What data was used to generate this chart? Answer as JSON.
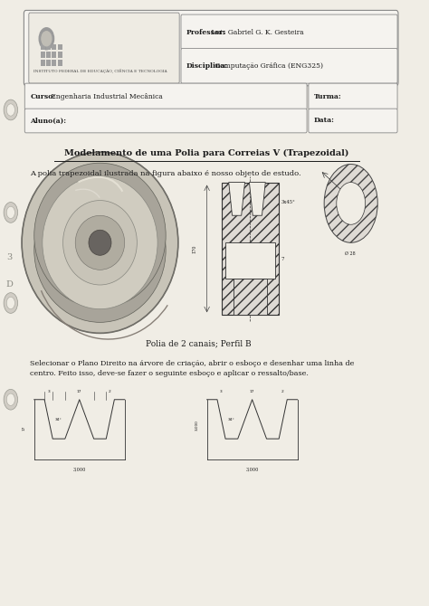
{
  "bg_color": "#e8e4dc",
  "page_bg": "#f0ede5",
  "header": {
    "institute_text": "INSTITUTO FEDERAL DE EDUCAÇÃO, CIÊNCIA E TECNOLOGIA",
    "professor_label": "Professor:",
    "professor_name": " Luis Gabriel G. K. Gesteira",
    "disciplina_label": "Disciplina:",
    "disciplina_name": " Computação Gráfica (ENG325)",
    "curso_label": "Curso:",
    "curso_name": " Engenharia Industrial Mecânica",
    "turma_label": "Turma:",
    "aluno_label": "Aluno(a):",
    "data_label": "Data:"
  },
  "title": "Modelamento de uma Polia para Correias V (Trapezoidal)",
  "intro_text": "A polia trapezoidal ilustrada na figura abaixo é nosso objeto de estudo.",
  "caption": "Polia de 2 canais; Perfil B",
  "body_text": "Selecionar o Plano Direito na árvore de criação, abrir o esboço e desenhar uma linha de\ncentro. Feito isso, deve-se fazer o seguinte esboço e aplicar o ressalto/base.",
  "text_color": "#1a1a1a",
  "border_color": "#888888",
  "light_gray": "#c8c4bc",
  "mid_gray": "#a0a0a0"
}
